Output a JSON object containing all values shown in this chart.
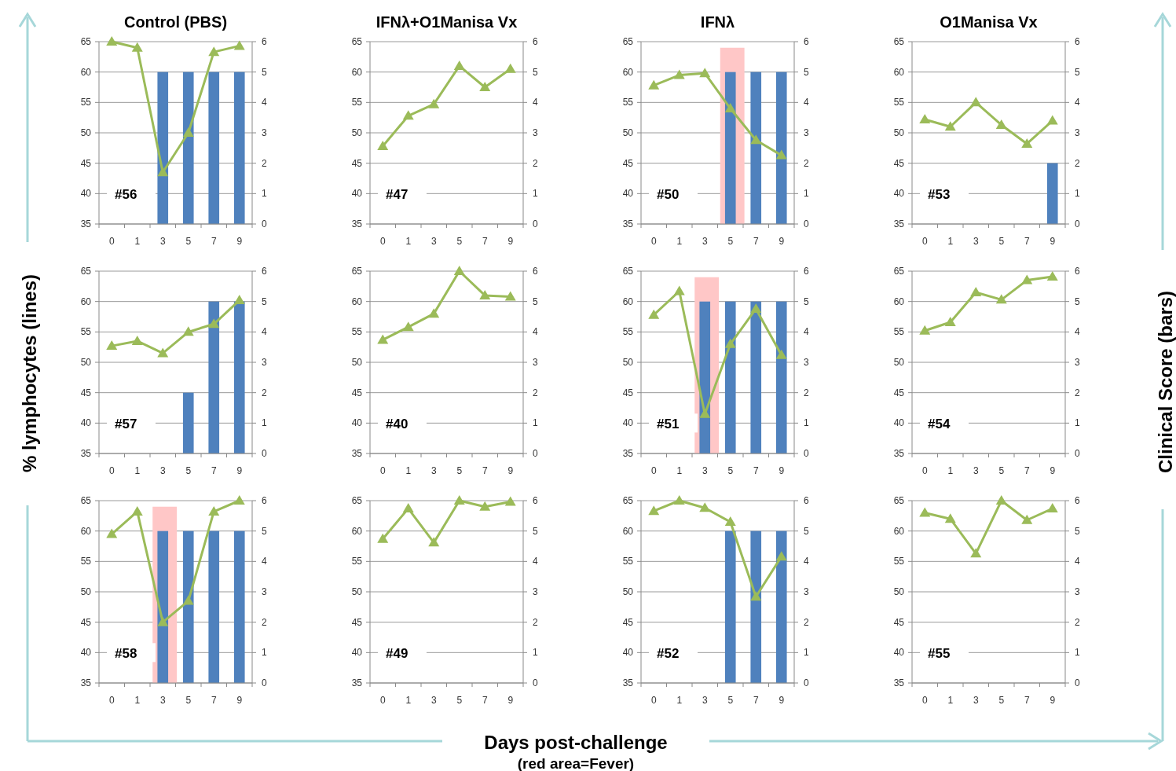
{
  "chart_data": [
    {
      "type": "bar",
      "title": "Control (PBS)",
      "annotations": [
        "#56"
      ],
      "categories": [
        "0",
        "1",
        "3",
        "5",
        "7",
        "9"
      ],
      "ylim": [
        35,
        65
      ],
      "yticks": [
        35,
        40,
        45,
        50,
        55,
        60,
        65
      ],
      "y2lim": [
        0,
        6
      ],
      "y2ticks": [
        0,
        1,
        2,
        3,
        4,
        5,
        6
      ],
      "grid": "y",
      "marker": "triangle",
      "series": [
        {
          "axis": "y2",
          "color": "#4f81bd",
          "values": [
            null,
            null,
            5,
            5,
            5,
            5
          ]
        },
        {
          "type": "line",
          "color": "#9bbb59",
          "values": [
            65,
            64,
            43.5,
            50,
            63.3,
            64.3
          ]
        }
      ]
    },
    {
      "type": "line",
      "title": "IFNλ+O1Manisa Vx",
      "annotations": [
        "#47"
      ],
      "categories": [
        "0",
        "1",
        "3",
        "5",
        "7",
        "9"
      ],
      "ylim": [
        35,
        65
      ],
      "yticks": [
        35,
        40,
        45,
        50,
        55,
        60,
        65
      ],
      "y2lim": [
        0,
        6
      ],
      "y2ticks": [
        0,
        1,
        2,
        3,
        4,
        5,
        6
      ],
      "grid": "y",
      "marker": "triangle",
      "series": [
        {
          "color": "#9bbb59",
          "values": [
            47.8,
            52.8,
            54.7,
            61,
            57.5,
            60.5
          ]
        }
      ]
    },
    {
      "type": "bar",
      "title": "IFNλ",
      "annotations": [
        "#50"
      ],
      "categories": [
        "0",
        "1",
        "3",
        "5",
        "7",
        "9"
      ],
      "ylim": [
        35,
        65
      ],
      "yticks": [
        35,
        40,
        45,
        50,
        55,
        60,
        65
      ],
      "y2lim": [
        0,
        6
      ],
      "y2ticks": [
        0,
        1,
        2,
        3,
        4,
        5,
        6
      ],
      "grid": "y",
      "marker": "triangle",
      "bands": [
        {
          "axis": "x",
          "from": "5",
          "to": "5",
          "color": "#ffc7c7"
        }
      ],
      "series": [
        {
          "axis": "y2",
          "color": "#4f81bd",
          "values": [
            null,
            null,
            null,
            5,
            5,
            5
          ]
        },
        {
          "type": "line",
          "color": "#9bbb59",
          "values": [
            57.8,
            59.5,
            59.8,
            54,
            48.8,
            46.3
          ]
        }
      ]
    },
    {
      "type": "bar",
      "title": "O1Manisa Vx",
      "annotations": [
        "#53"
      ],
      "categories": [
        "0",
        "1",
        "3",
        "5",
        "7",
        "9"
      ],
      "ylim": [
        35,
        65
      ],
      "yticks": [
        35,
        40,
        45,
        50,
        55,
        60,
        65
      ],
      "y2lim": [
        0,
        6
      ],
      "y2ticks": [
        0,
        1,
        2,
        3,
        4,
        5,
        6
      ],
      "grid": "y",
      "marker": "triangle",
      "series": [
        {
          "axis": "y2",
          "color": "#4f81bd",
          "values": [
            null,
            null,
            null,
            null,
            null,
            2
          ]
        },
        {
          "type": "line",
          "color": "#9bbb59",
          "values": [
            52.2,
            51,
            55,
            51.3,
            48.2,
            52
          ]
        }
      ]
    },
    {
      "type": "bar",
      "ylabel": "% lymphocytes (lines)",
      "annotations": [
        "#57"
      ],
      "categories": [
        "0",
        "1",
        "3",
        "5",
        "7",
        "9"
      ],
      "ylim": [
        35,
        65
      ],
      "yticks": [
        35,
        40,
        45,
        50,
        55,
        60,
        65
      ],
      "y2lim": [
        0,
        6
      ],
      "y2ticks": [
        0,
        1,
        2,
        3,
        4,
        5,
        6
      ],
      "grid": "y",
      "marker": "triangle",
      "series": [
        {
          "axis": "y2",
          "color": "#4f81bd",
          "values": [
            null,
            null,
            null,
            2,
            5,
            5
          ]
        },
        {
          "type": "line",
          "color": "#9bbb59",
          "values": [
            52.7,
            53.5,
            51.5,
            55,
            56.3,
            60.2
          ]
        }
      ]
    },
    {
      "type": "line",
      "annotations": [
        "#40"
      ],
      "categories": [
        "0",
        "1",
        "3",
        "5",
        "7",
        "9"
      ],
      "ylim": [
        35,
        65
      ],
      "yticks": [
        35,
        40,
        45,
        50,
        55,
        60,
        65
      ],
      "y2lim": [
        0,
        6
      ],
      "y2ticks": [
        0,
        1,
        2,
        3,
        4,
        5,
        6
      ],
      "grid": "y",
      "marker": "triangle",
      "series": [
        {
          "color": "#9bbb59",
          "values": [
            53.7,
            55.8,
            58,
            65,
            61,
            60.8
          ]
        }
      ]
    },
    {
      "type": "bar",
      "annotations": [
        "#51"
      ],
      "categories": [
        "0",
        "1",
        "3",
        "5",
        "7",
        "9"
      ],
      "ylim": [
        35,
        65
      ],
      "yticks": [
        35,
        40,
        45,
        50,
        55,
        60,
        65
      ],
      "y2lim": [
        0,
        6
      ],
      "y2ticks": [
        0,
        1,
        2,
        3,
        4,
        5,
        6
      ],
      "grid": "y",
      "marker": "triangle",
      "bands": [
        {
          "axis": "x",
          "from": "3",
          "to": "3",
          "color": "#ffc7c7"
        }
      ],
      "series": [
        {
          "axis": "y2",
          "color": "#4f81bd",
          "values": [
            null,
            null,
            5,
            5,
            5,
            5
          ]
        },
        {
          "type": "line",
          "color": "#9bbb59",
          "values": [
            57.8,
            61.7,
            41.5,
            53,
            58.8,
            51.2
          ]
        }
      ]
    },
    {
      "type": "line",
      "y2label": "Clinical Score (bars)",
      "annotations": [
        "#54"
      ],
      "categories": [
        "0",
        "1",
        "3",
        "5",
        "7",
        "9"
      ],
      "ylim": [
        35,
        65
      ],
      "yticks": [
        35,
        40,
        45,
        50,
        55,
        60,
        65
      ],
      "y2lim": [
        0,
        6
      ],
      "y2ticks": [
        0,
        1,
        2,
        3,
        4,
        5,
        6
      ],
      "grid": "y",
      "marker": "triangle",
      "series": [
        {
          "color": "#9bbb59",
          "values": [
            55.2,
            56.6,
            61.5,
            60.3,
            63.5,
            64.1
          ]
        }
      ]
    },
    {
      "type": "bar",
      "annotations": [
        "#58"
      ],
      "categories": [
        "0",
        "1",
        "3",
        "5",
        "7",
        "9"
      ],
      "ylim": [
        35,
        65
      ],
      "yticks": [
        35,
        40,
        45,
        50,
        55,
        60,
        65
      ],
      "y2lim": [
        0,
        6
      ],
      "y2ticks": [
        0,
        1,
        2,
        3,
        4,
        5,
        6
      ],
      "grid": "y",
      "marker": "triangle",
      "bands": [
        {
          "axis": "x",
          "from": "3",
          "to": "3",
          "color": "#ffc7c7"
        }
      ],
      "series": [
        {
          "axis": "y2",
          "color": "#4f81bd",
          "values": [
            null,
            null,
            5,
            5,
            5,
            5
          ]
        },
        {
          "type": "line",
          "color": "#9bbb59",
          "values": [
            59.5,
            63.2,
            45,
            48.5,
            63.2,
            65
          ]
        }
      ]
    },
    {
      "type": "line",
      "xlabel": "Days post-challenge",
      "annotations": [
        "#49",
        "(red area=Fever)"
      ],
      "categories": [
        "0",
        "1",
        "3",
        "5",
        "7",
        "9"
      ],
      "ylim": [
        35,
        65
      ],
      "yticks": [
        35,
        40,
        45,
        50,
        55,
        60,
        65
      ],
      "y2lim": [
        0,
        6
      ],
      "y2ticks": [
        0,
        1,
        2,
        3,
        4,
        5,
        6
      ],
      "grid": "y",
      "marker": "triangle",
      "series": [
        {
          "color": "#9bbb59",
          "values": [
            58.7,
            63.7,
            58.1,
            65,
            64,
            64.8
          ]
        }
      ]
    },
    {
      "type": "bar",
      "annotations": [
        "#52"
      ],
      "categories": [
        "0",
        "1",
        "3",
        "5",
        "7",
        "9"
      ],
      "ylim": [
        35,
        65
      ],
      "yticks": [
        35,
        40,
        45,
        50,
        55,
        60,
        65
      ],
      "y2lim": [
        0,
        6
      ],
      "y2ticks": [
        0,
        1,
        2,
        3,
        4,
        5,
        6
      ],
      "grid": "y",
      "marker": "triangle",
      "series": [
        {
          "axis": "y2",
          "color": "#4f81bd",
          "values": [
            null,
            null,
            null,
            5,
            5,
            5
          ]
        },
        {
          "type": "line",
          "color": "#9bbb59",
          "values": [
            63.3,
            65,
            63.8,
            61.5,
            49.2,
            55.8
          ]
        }
      ]
    },
    {
      "type": "line",
      "annotations": [
        "#55"
      ],
      "categories": [
        "0",
        "1",
        "3",
        "5",
        "7",
        "9"
      ],
      "ylim": [
        35,
        65
      ],
      "yticks": [
        35,
        40,
        45,
        50,
        55,
        60,
        65
      ],
      "y2lim": [
        0,
        6
      ],
      "y2ticks": [
        0,
        1,
        2,
        3,
        4,
        5,
        6
      ],
      "grid": "y",
      "marker": "triangle",
      "series": [
        {
          "color": "#9bbb59",
          "values": [
            63,
            62,
            56.3,
            65,
            61.8,
            63.7
          ]
        }
      ]
    }
  ]
}
